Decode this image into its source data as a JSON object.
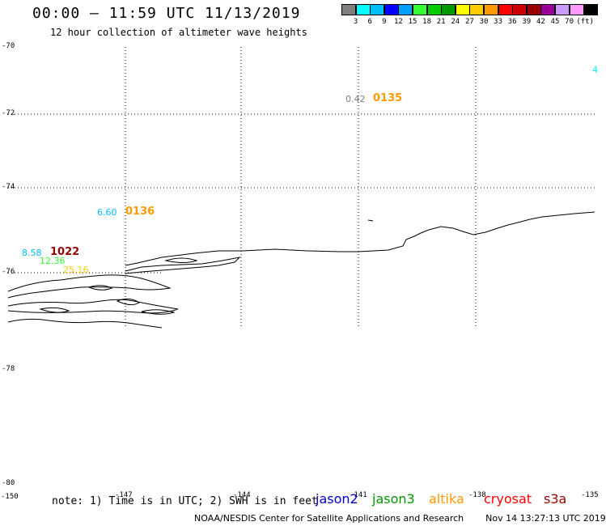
{
  "header": {
    "title": "00:00 – 11:59 UTC 11/13/2019",
    "subtitle": "12 hour collection of altimeter wave heights"
  },
  "color_scale": {
    "colors": [
      "#7f7f7f",
      "#00ffff",
      "#00bfff",
      "#0000ff",
      "#00a0ff",
      "#33ff33",
      "#00cc00",
      "#009900",
      "#ffff00",
      "#ffcc00",
      "#ff9900",
      "#ff0000",
      "#cc0000",
      "#990000",
      "#990099",
      "#cc99ff",
      "#ff99ff",
      "#000000"
    ],
    "ticks": [
      "3",
      "6",
      "9",
      "12",
      "15",
      "18",
      "21",
      "24",
      "27",
      "30",
      "33",
      "36",
      "39",
      "42",
      "45",
      "70"
    ],
    "unit": "(ft)"
  },
  "latitudes": [
    "-70",
    "-72",
    "-74",
    "-76",
    "-78",
    "-80"
  ],
  "longitudes": [
    "-150",
    "-147",
    "-144",
    "-141",
    "-138",
    "-135"
  ],
  "observations": [
    {
      "swh": "0.42",
      "time": "0135",
      "swh_color": "#7f7f7f",
      "time_color": "#ff9900"
    },
    {
      "swh": "6.60",
      "time": "0136",
      "swh_color": "#00bfff",
      "time_color": "#ff9900"
    },
    {
      "swh": "8.58",
      "time": "1022",
      "swh_color": "#00bfff",
      "time_color": "#990000"
    },
    {
      "swh": "12.36",
      "swh_color": "#33ff33"
    },
    {
      "swh": "25.16",
      "swh_color": "#ffcc00"
    },
    {
      "swh": "4",
      "swh_color": "#00ffff"
    }
  ],
  "footer": {
    "note": "note: 1) Time is in UTC; 2) SWH is in feet",
    "satellites": [
      {
        "name": "jason2",
        "color": "#0000cc"
      },
      {
        "name": "jason3",
        "color": "#009900"
      },
      {
        "name": "altika",
        "color": "#ff9900"
      },
      {
        "name": "cryosat",
        "color": "#ff0000"
      },
      {
        "name": "s3a",
        "color": "#990000"
      }
    ],
    "credit": "NOAA/NESDIS Center for Satellite Applications and Research",
    "timestamp": "Nov 14 13:27:13 UTC 2019"
  }
}
